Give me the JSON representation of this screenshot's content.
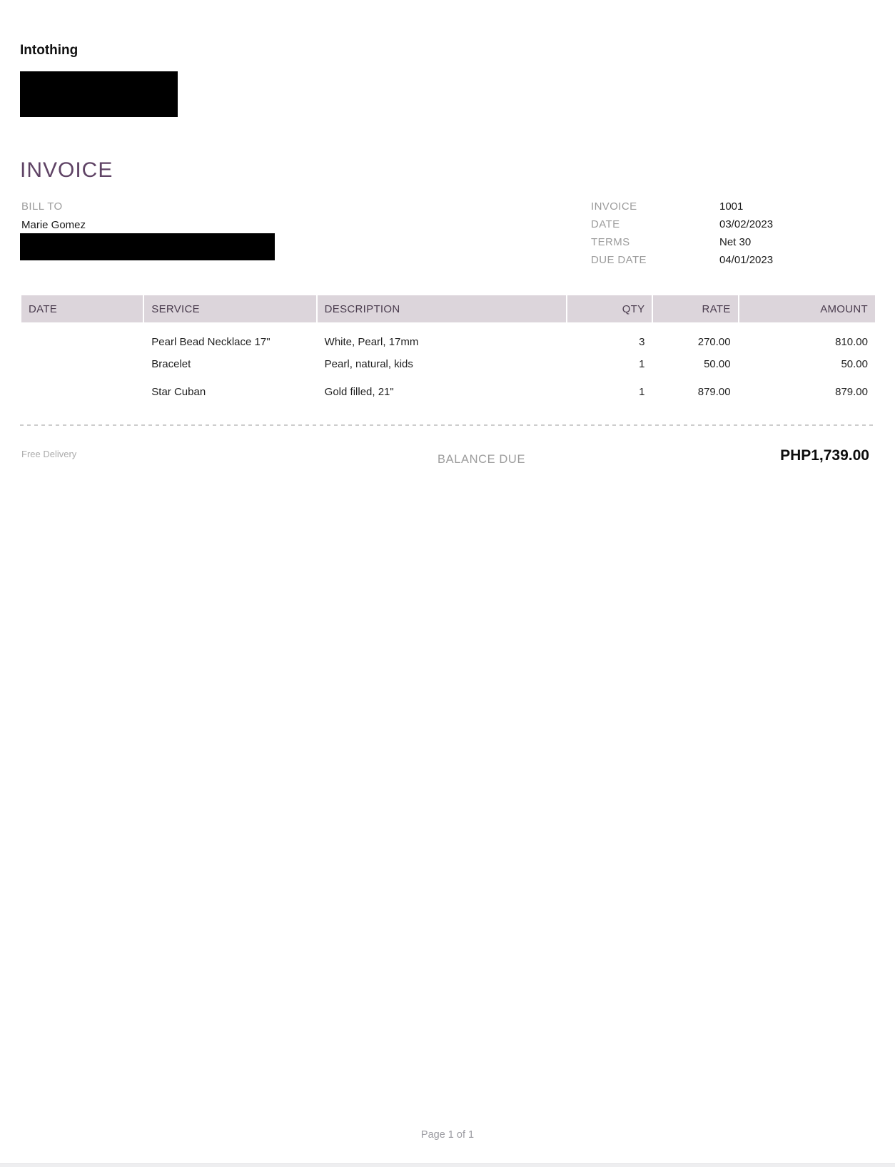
{
  "brand": {
    "name": "Intothing"
  },
  "title": "INVOICE",
  "bill_to": {
    "label": "BILL TO",
    "name": "Marie Gomez"
  },
  "meta": {
    "rows": [
      {
        "label": "INVOICE",
        "value": "1001"
      },
      {
        "label": "DATE",
        "value": "03/02/2023"
      },
      {
        "label": "TERMS",
        "value": "Net 30"
      },
      {
        "label": "DUE DATE",
        "value": "04/01/2023"
      }
    ]
  },
  "table": {
    "columns": [
      "DATE",
      "SERVICE",
      "DESCRIPTION",
      "QTY",
      "RATE",
      "AMOUNT"
    ],
    "rows": [
      {
        "date": "",
        "service": "Pearl Bead Necklace 17\"",
        "description": "White, Pearl, 17mm",
        "qty": "3",
        "rate": "270.00",
        "amount": "810.00"
      },
      {
        "date": "",
        "service": "Bracelet",
        "description": "Pearl, natural, kids",
        "qty": "1",
        "rate": "50.00",
        "amount": "50.00"
      },
      {
        "date": "",
        "service": "Star Cuban",
        "description": "Gold filled, 21\"",
        "qty": "1",
        "rate": "879.00",
        "amount": "879.00"
      }
    ]
  },
  "summary": {
    "note": "Free Delivery",
    "balance_label": "BALANCE DUE",
    "balance_amount": "PHP1,739.00"
  },
  "footer": {
    "page": "Page 1 of 1"
  },
  "colors": {
    "accent_title": "#5f4365",
    "table_header_bg": "#dcd5db",
    "table_header_text": "#4a3c4e",
    "muted_label": "#9c9c9c"
  }
}
